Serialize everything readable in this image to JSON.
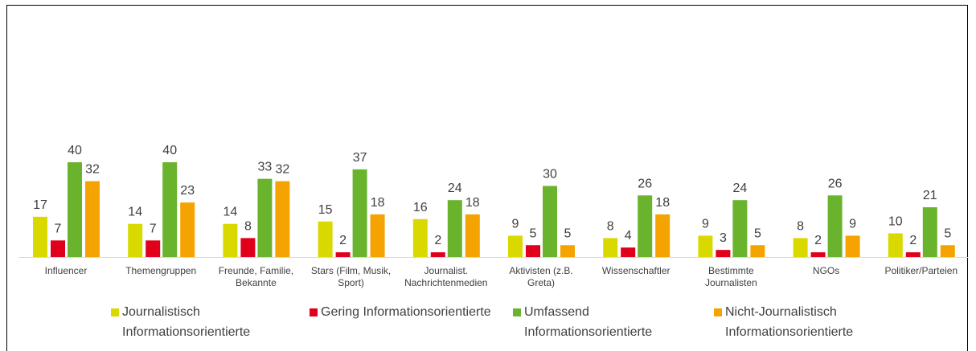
{
  "chart_data": {
    "type": "bar",
    "categories": [
      "Influencer",
      "Themengruppen",
      "Freunde, Familie, Bekannte",
      "Stars (Film, Musik, Sport)",
      "Journalist. Nachrichtenmedien",
      "Aktivisten (z.B. Greta)",
      "Wissenschaftler",
      "Bestimmte Journalisten",
      "NGOs",
      "Politiker/Parteien"
    ],
    "series": [
      {
        "name": "Journalistisch Informationsorientierte",
        "color": "#d9d900",
        "values": [
          17,
          14,
          14,
          15,
          16,
          9,
          8,
          9,
          8,
          10
        ]
      },
      {
        "name": "Gering Informationsorientierte",
        "color": "#e0001b",
        "values": [
          7,
          7,
          8,
          2,
          2,
          5,
          4,
          3,
          2,
          2
        ]
      },
      {
        "name": "Umfassend Informationsorientierte",
        "color": "#6ab42d",
        "values": [
          40,
          40,
          33,
          37,
          24,
          30,
          26,
          24,
          26,
          21
        ]
      },
      {
        "name": "Nicht-Journalistisch Informationsorientierte",
        "color": "#f5a300",
        "values": [
          32,
          23,
          32,
          18,
          18,
          5,
          18,
          5,
          9,
          5
        ]
      }
    ],
    "legend": "bottom"
  }
}
